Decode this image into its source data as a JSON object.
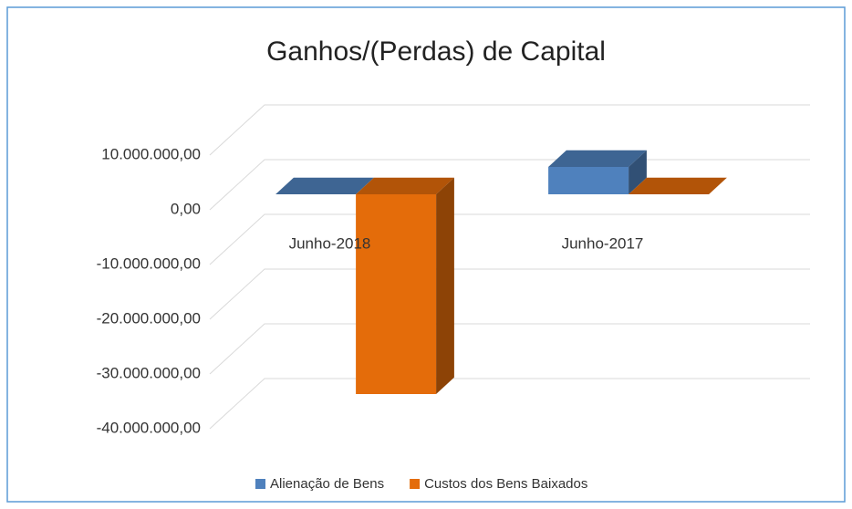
{
  "chart_data": {
    "type": "bar3d",
    "title": "Ganhos/(Perdas) de Capital",
    "categories": [
      "Junho-2018",
      "Junho-2017"
    ],
    "series": [
      {
        "name": "Alienação de Bens",
        "color": "#4f81bd",
        "values": [
          0,
          5000000
        ]
      },
      {
        "name": "Custos dos Bens Baixados",
        "color": "#e46c0a",
        "values": [
          -36500000,
          0
        ]
      }
    ],
    "ylim": [
      -40000000,
      10000000
    ],
    "yticks": [
      {
        "value": 10000000,
        "label": "10.000.000,00"
      },
      {
        "value": 0,
        "label": "0,00"
      },
      {
        "value": -10000000,
        "label": "-10.000.000,00"
      },
      {
        "value": -20000000,
        "label": "-20.000.000,00"
      },
      {
        "value": -30000000,
        "label": "-30.000.000,00"
      },
      {
        "value": -40000000,
        "label": "-40.000.000,00"
      }
    ],
    "grid": true,
    "legend": "bottom"
  }
}
